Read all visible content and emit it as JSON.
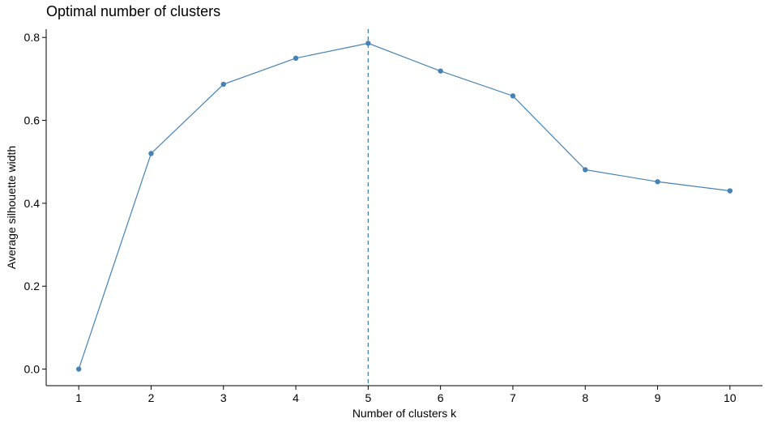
{
  "chart_data": {
    "type": "line",
    "title": "Optimal number of clusters",
    "xlabel": "Number of clusters k",
    "ylabel": "Average silhouette width",
    "categories": [
      "1",
      "2",
      "3",
      "4",
      "5",
      "6",
      "7",
      "8",
      "9",
      "10"
    ],
    "x": [
      1,
      2,
      3,
      4,
      5,
      6,
      7,
      8,
      9,
      10
    ],
    "values": [
      0.0,
      0.52,
      0.687,
      0.75,
      0.786,
      0.719,
      0.659,
      0.481,
      0.452,
      0.43
    ],
    "ylim": [
      -0.04,
      0.82
    ],
    "yticks": [
      0.0,
      0.2,
      0.4,
      0.6,
      0.8
    ],
    "ytick_labels": [
      "0.0",
      "0.2",
      "0.4",
      "0.6",
      "0.8"
    ],
    "reference_line": {
      "x": 5,
      "style": "dashed"
    },
    "grid": false,
    "legend": "none",
    "colors": {
      "series": "#4682b4",
      "axis": "#000000"
    }
  }
}
